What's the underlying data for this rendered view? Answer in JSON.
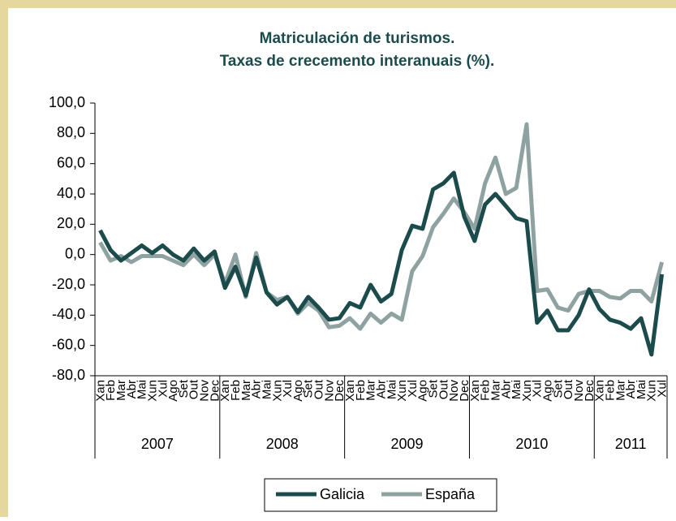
{
  "chart_data": {
    "type": "line",
    "title": "Matriculación de turismos.",
    "subtitle": "Taxas de crecemento interanuais (%).",
    "categories": [
      "Xan",
      "Feb",
      "Mar",
      "Abr",
      "Mai",
      "Xun",
      "Xul",
      "Ago",
      "Set",
      "Out",
      "Nov",
      "Dec",
      "Xan",
      "Feb",
      "Mar",
      "Abr",
      "Mai",
      "Xun",
      "Xul",
      "Ago",
      "Set",
      "Out",
      "Nov",
      "Dec",
      "Xan",
      "Feb",
      "Mar",
      "Abr",
      "Mai",
      "Xun",
      "Xul",
      "Ago",
      "Set",
      "Out",
      "Nov",
      "Dec",
      "Xan",
      "Feb",
      "Mar",
      "Abr",
      "Mai",
      "Xun",
      "Xul",
      "Ago",
      "Set",
      "Out",
      "Nov",
      "Dec",
      "Xan",
      "Feb",
      "Mar",
      "Abr",
      "Mai",
      "Xun",
      "Xul"
    ],
    "groups": [
      "2007",
      "2008",
      "2009",
      "2010",
      "2011"
    ],
    "series": [
      {
        "name": "Galicia",
        "color": "#1c4b4b",
        "values": [
          16,
          3,
          -4,
          1,
          6,
          1,
          6,
          0,
          -4,
          4,
          -4,
          2,
          -22,
          -8,
          -27,
          -2,
          -25,
          -33,
          -28,
          -38,
          -28,
          -35,
          -43,
          -42,
          -32,
          -35,
          -20,
          -31,
          -26,
          3,
          19,
          17,
          43,
          47,
          54,
          25,
          9,
          33,
          40,
          32,
          24,
          22,
          -45,
          -37,
          -50,
          -50,
          -40,
          -23,
          -36,
          -43,
          -45,
          -49,
          -42,
          -66,
          -13
        ]
      },
      {
        "name": "España",
        "color": "#8fa2a2",
        "values": [
          8,
          -4,
          -1,
          -5,
          -1,
          -1,
          -1,
          -4,
          -7,
          0,
          -7,
          0,
          -19,
          0,
          -28,
          1,
          -25,
          -30,
          -28,
          -39,
          -32,
          -37,
          -48,
          -47,
          -42,
          -49,
          -39,
          -45,
          -39,
          -43,
          -11,
          -1,
          18,
          27,
          37,
          28,
          17,
          47,
          64,
          40,
          44,
          86,
          -24,
          -23,
          -35,
          -37,
          -26,
          -24,
          -24,
          -28,
          -29,
          -24,
          -24,
          -31,
          -5
        ]
      }
    ],
    "ylim": [
      -80,
      100
    ],
    "yticks": [
      {
        "value": -80,
        "label": "-80,0"
      },
      {
        "value": -60,
        "label": "-60,0"
      },
      {
        "value": -40,
        "label": "-40,0"
      },
      {
        "value": -20,
        "label": "-20,0"
      },
      {
        "value": 0,
        "label": "0,0"
      },
      {
        "value": 20,
        "label": "20,0"
      },
      {
        "value": 40,
        "label": "40,0"
      },
      {
        "value": 60,
        "label": "60,0"
      },
      {
        "value": 80,
        "label": "80,0"
      },
      {
        "value": 100,
        "label": "100,0"
      }
    ],
    "grid": false
  }
}
